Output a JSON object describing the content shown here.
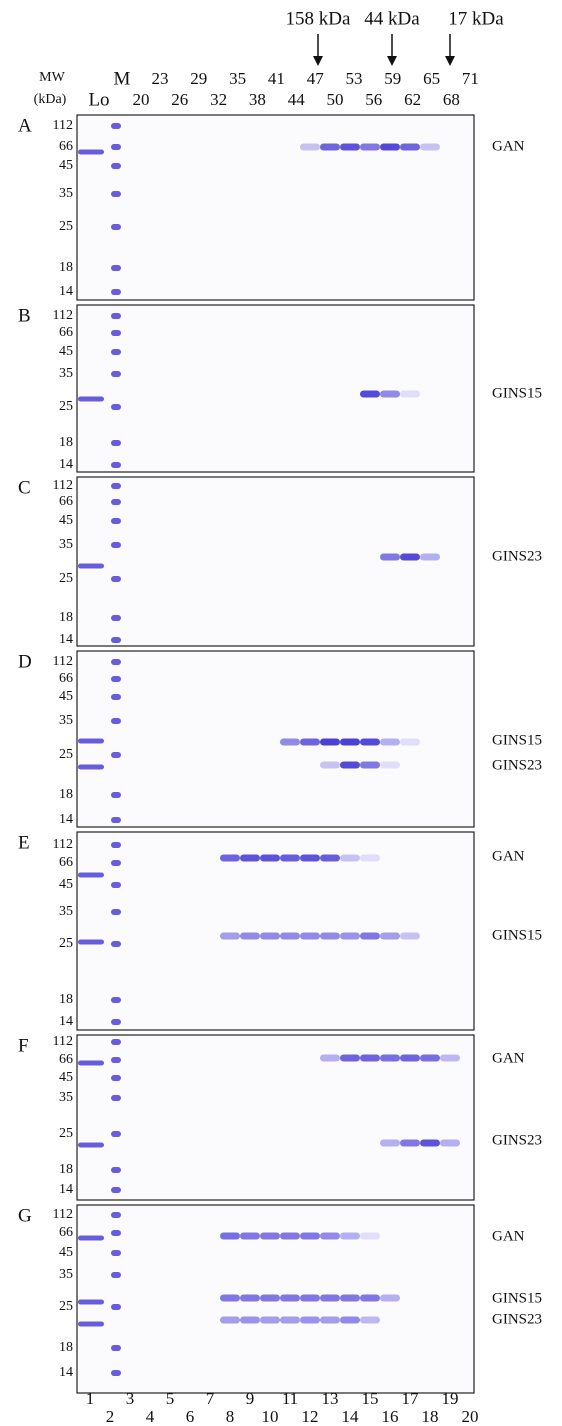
{
  "header": {
    "arrows": [
      "158 kDa",
      "44 kDa",
      "17 kDa"
    ],
    "mw_label": "MW",
    "mw_unit": "(kDa)",
    "load": "Lo",
    "marker": "M",
    "fractions_top": [
      "23",
      "29",
      "35",
      "41",
      "47",
      "53",
      "59",
      "65",
      "71"
    ],
    "fractions_bottom": [
      "20",
      "26",
      "32",
      "38",
      "44",
      "50",
      "56",
      "62",
      "68"
    ]
  },
  "panels": [
    {
      "letter": "A",
      "mw": [
        "112",
        "66",
        "45",
        "35",
        "25",
        "18",
        "14"
      ],
      "proteins": [
        "GAN"
      ]
    },
    {
      "letter": "B",
      "mw": [
        "112",
        "66",
        "45",
        "35",
        "25",
        "18",
        "14"
      ],
      "proteins": [
        "GINS15"
      ]
    },
    {
      "letter": "C",
      "mw": [
        "112",
        "66",
        "45",
        "35",
        "25",
        "18",
        "14"
      ],
      "proteins": [
        "GINS23"
      ]
    },
    {
      "letter": "D",
      "mw": [
        "112",
        "66",
        "45",
        "35",
        "25",
        "18",
        "14"
      ],
      "proteins": [
        "GINS15",
        "GINS23"
      ]
    },
    {
      "letter": "E",
      "mw": [
        "112",
        "66",
        "45",
        "35",
        "25",
        "18",
        "14"
      ],
      "proteins": [
        "GAN",
        "GINS15"
      ]
    },
    {
      "letter": "F",
      "mw": [
        "112",
        "66",
        "45",
        "35",
        "25",
        "18",
        "14"
      ],
      "proteins": [
        "GAN",
        "GINS23"
      ]
    },
    {
      "letter": "G",
      "mw": [
        "112",
        "66",
        "45",
        "35",
        "25",
        "18",
        "14"
      ],
      "proteins": [
        "GAN",
        "GINS15",
        "GINS23"
      ]
    }
  ],
  "lanes": {
    "odd": [
      "1",
      "3",
      "5",
      "7",
      "9",
      "11",
      "13",
      "15",
      "17",
      "19"
    ],
    "even": [
      "2",
      "4",
      "6",
      "8",
      "10",
      "12",
      "14",
      "16",
      "18",
      "20"
    ]
  }
}
